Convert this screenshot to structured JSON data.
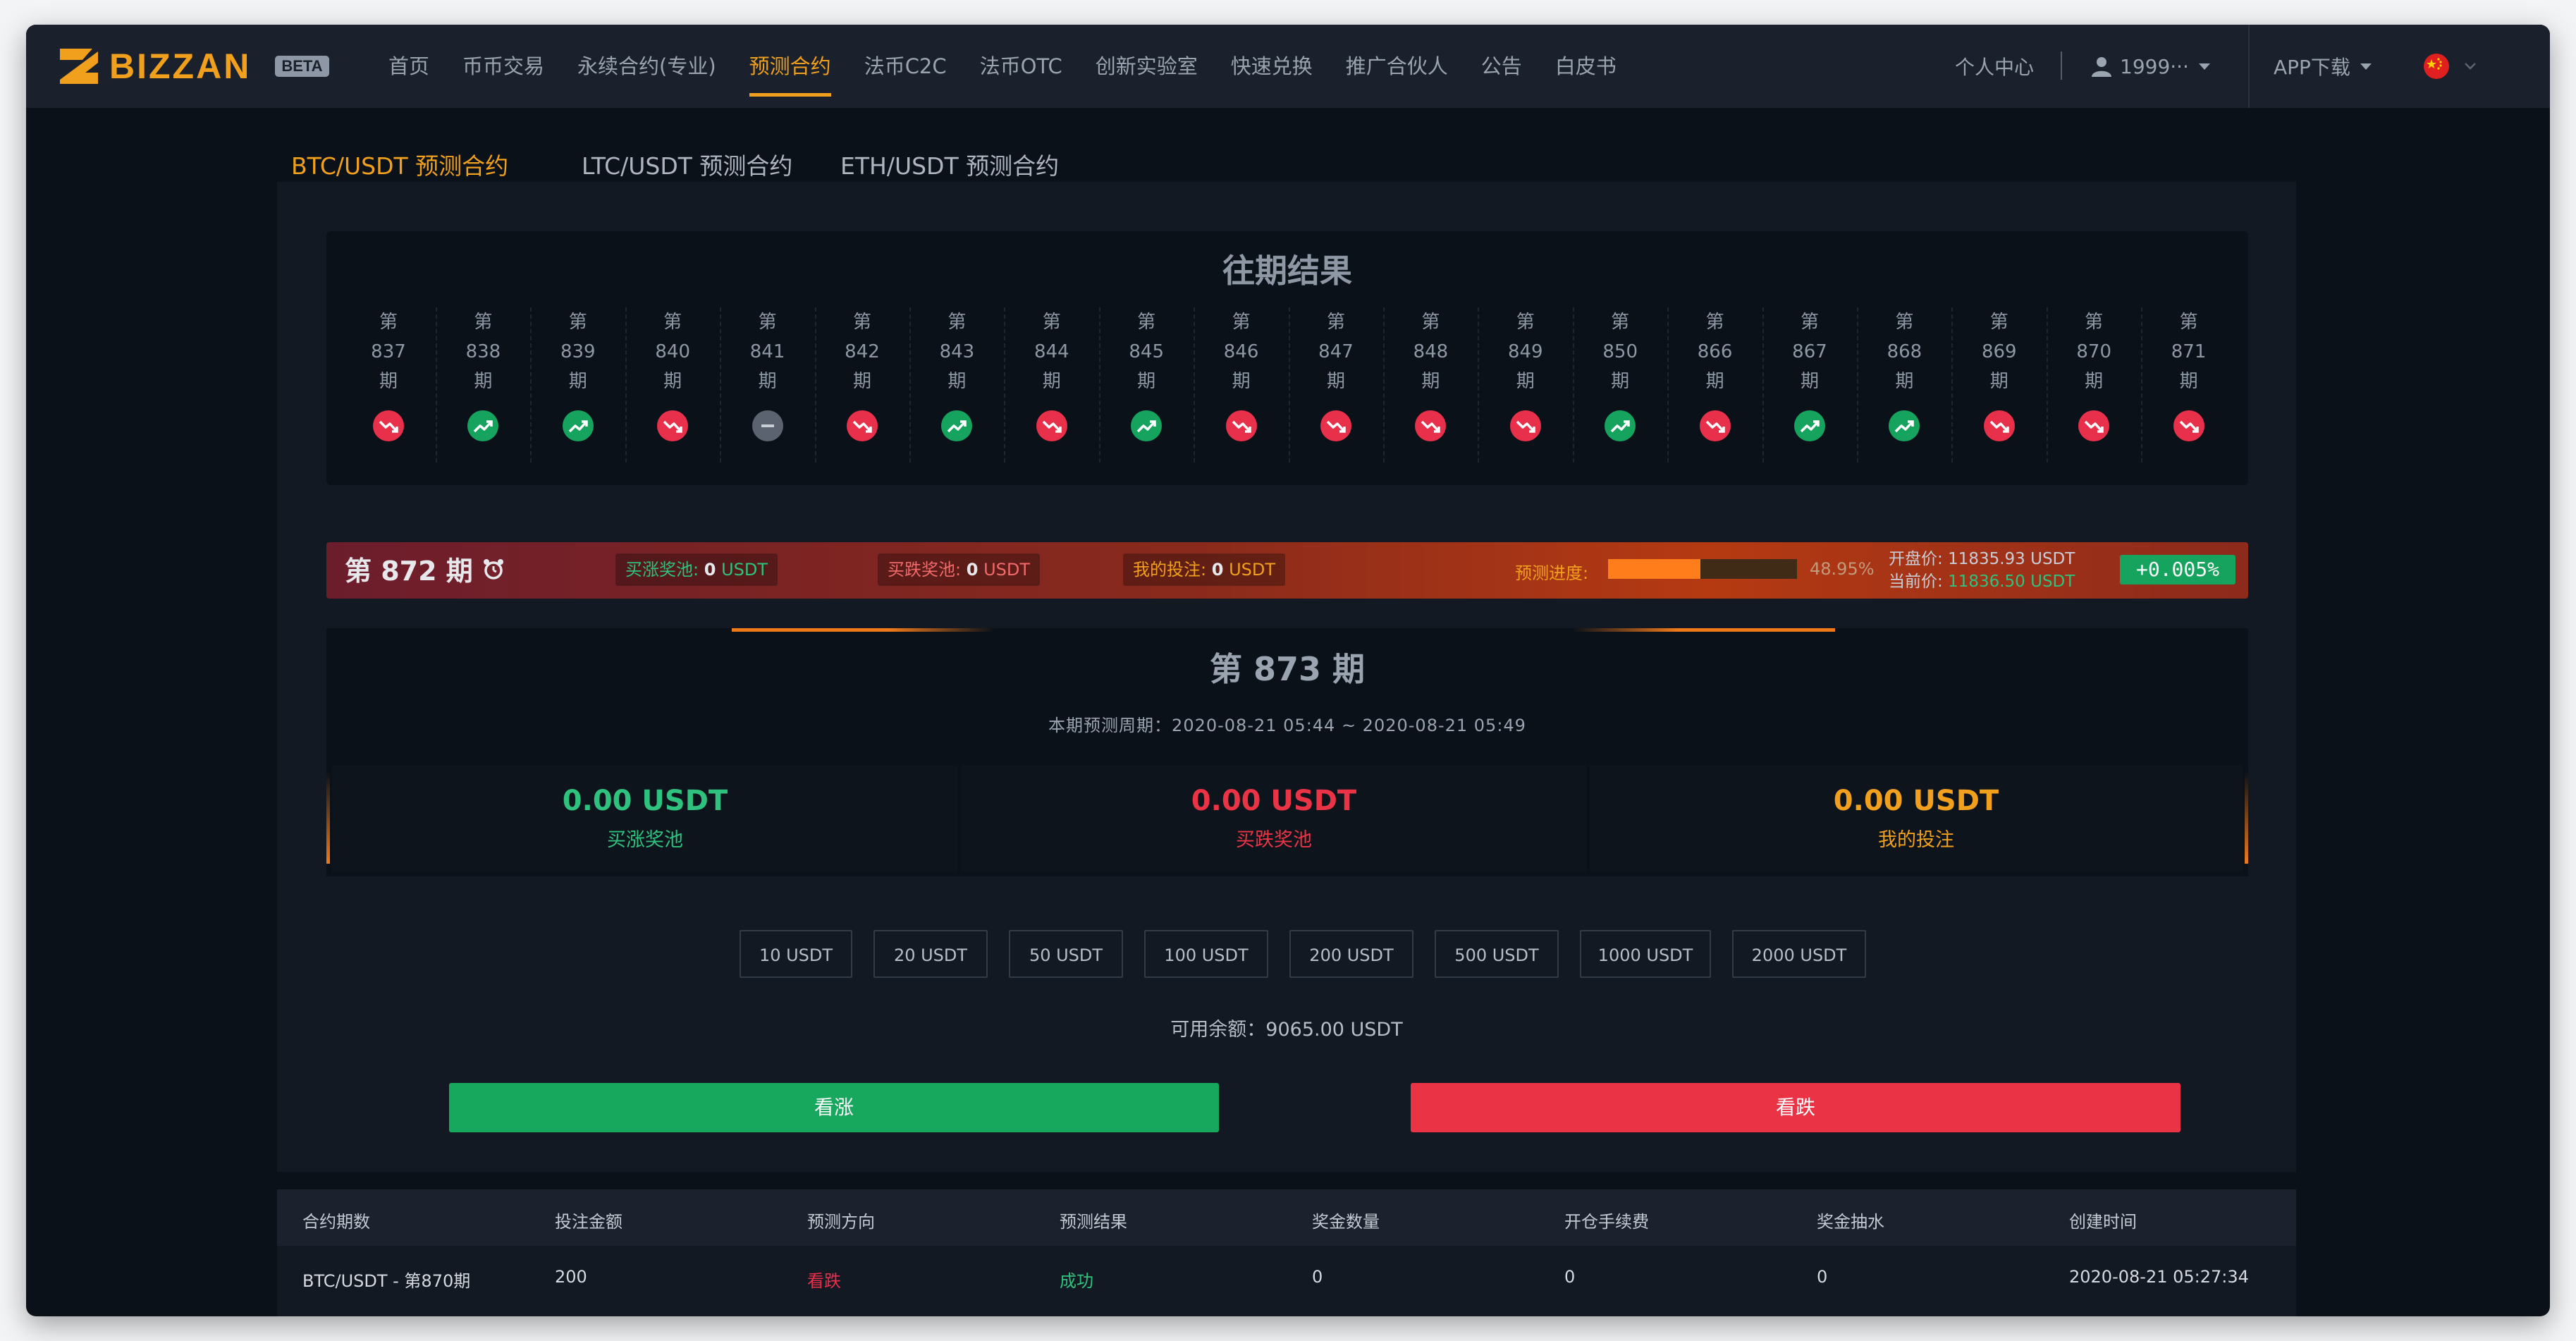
{
  "header": {
    "logo_text": "BIZZAN",
    "beta": "BETA",
    "nav": [
      "首页",
      "币币交易",
      "永续合约(专业)",
      "预测合约",
      "法币C2C",
      "法币OTC",
      "创新实验室",
      "快速兑换",
      "推广合伙人",
      "公告",
      "白皮书"
    ],
    "active_nav": "预测合约",
    "personal_center": "个人中心",
    "user": "1999···",
    "app_download": "APP下载",
    "accent": "#f0a01c"
  },
  "tabs": [
    "BTC/USDT 预测合约",
    "LTC/USDT 预测合约",
    "ETH/USDT 预测合约"
  ],
  "history": {
    "title": "往期结果",
    "prefix": "第",
    "suffix": "期",
    "periods": [
      {
        "no": "837",
        "result": "down"
      },
      {
        "no": "838",
        "result": "up"
      },
      {
        "no": "839",
        "result": "up"
      },
      {
        "no": "840",
        "result": "down"
      },
      {
        "no": "841",
        "result": "flat"
      },
      {
        "no": "842",
        "result": "down"
      },
      {
        "no": "843",
        "result": "up"
      },
      {
        "no": "844",
        "result": "down"
      },
      {
        "no": "845",
        "result": "up"
      },
      {
        "no": "846",
        "result": "down"
      },
      {
        "no": "847",
        "result": "down"
      },
      {
        "no": "848",
        "result": "down"
      },
      {
        "no": "849",
        "result": "down"
      },
      {
        "no": "850",
        "result": "up"
      },
      {
        "no": "866",
        "result": "down"
      },
      {
        "no": "867",
        "result": "up"
      },
      {
        "no": "868",
        "result": "up"
      },
      {
        "no": "869",
        "result": "down"
      },
      {
        "no": "870",
        "result": "down"
      },
      {
        "no": "871",
        "result": "down"
      }
    ]
  },
  "current": {
    "title": "第 872 期",
    "up_pool_label": "买涨奖池:",
    "up_pool_value": "0",
    "down_pool_label": "买跌奖池:",
    "down_pool_value": "0",
    "my_bet_label": "我的投注:",
    "my_bet_value": "0",
    "unit": "USDT",
    "progress_label": "预测进度:",
    "progress_value": 0.4895,
    "progress_text": "48.95%",
    "open_label": "开盘价:",
    "open_price": "11835.93 USDT",
    "current_label": "当前价:",
    "current_price": "11836.50 USDT",
    "change": "+0.005%"
  },
  "next": {
    "title": "第 873 期",
    "period_range": "本期预测周期：2020-08-21 05:44 ~ 2020-08-21 05:49",
    "up_pool_value": "0.00 USDT",
    "up_pool_label": "买涨奖池",
    "down_pool_value": "0.00 USDT",
    "down_pool_label": "买跌奖池",
    "my_bet_value": "0.00 USDT",
    "my_bet_label": "我的投注"
  },
  "amounts": [
    "10 USDT",
    "20 USDT",
    "50 USDT",
    "100 USDT",
    "200 USDT",
    "500 USDT",
    "1000 USDT",
    "2000 USDT"
  ],
  "balance": "可用余额：9065.00 USDT",
  "buttons": {
    "up": "看涨",
    "down": "看跌"
  },
  "colors": {
    "up": "#17a85e",
    "down": "#ea3445"
  },
  "table": {
    "headers": [
      "合约期数",
      "投注金额",
      "预测方向",
      "预测结果",
      "奖金数量",
      "开仓手续费",
      "奖金抽水",
      "创建时间"
    ],
    "rows": [
      [
        "BTC/USDT - 第870期",
        "200",
        "看跌",
        "成功",
        "0",
        "0",
        "0",
        "2020-08-21 05:27:34"
      ]
    ]
  }
}
